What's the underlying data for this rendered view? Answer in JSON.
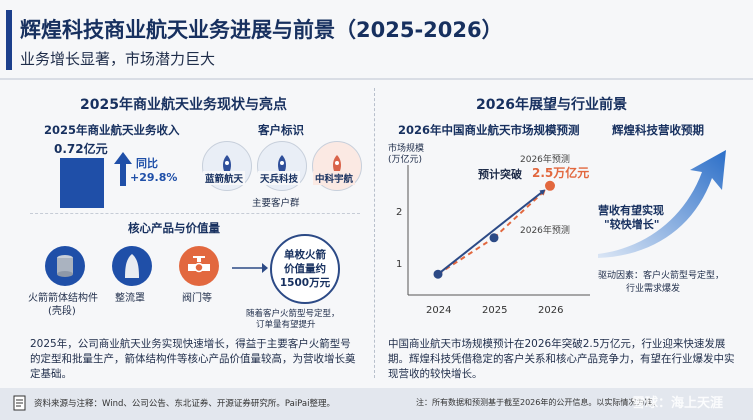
{
  "header": {
    "title": "辉煌科技商业航天业务进展与前景（2025-2026）",
    "subtitle": "业务增长显著，市场潜力巨大"
  },
  "left": {
    "section_title": "2025年商业航天业务现状与亮点",
    "revenue": {
      "title": "2025年商业航天业务收入",
      "value": "0.72亿元",
      "yoy_label": "同比",
      "yoy_value": "+29.8%"
    },
    "customers": {
      "title": "客户标识",
      "items": [
        {
          "name": "蓝箭航天",
          "color": "#2f4f9a"
        },
        {
          "name": "天兵科技",
          "color": "#2f4f9a"
        },
        {
          "name": "中科宇航",
          "color": "#d9634a"
        }
      ],
      "caption": "主要客户群"
    },
    "products": {
      "title": "核心产品与价值量",
      "items": [
        {
          "name": "火箭箭体结构件",
          "note": "(壳段)",
          "icon": "cylinder-icon"
        },
        {
          "name": "整流罩",
          "note": "",
          "icon": "fairing-icon"
        },
        {
          "name": "阀门等",
          "note": "",
          "icon": "valve-icon"
        }
      ],
      "value_line1": "单枚火箭",
      "value_line2": "价值量约",
      "value_line3": "1500万元",
      "value_note1": "随着客户火箭型号定型，",
      "value_note2": "订单量有望提升"
    },
    "paragraph": "2025年，公司商业航天业务实现快速增长，得益于主要客户火箭型号的定型和批量生产，箭体结构件等核心产品价值量较高，为营收增长奠定基础。"
  },
  "right": {
    "section_title": "2026年展望与行业前景",
    "market_title": "2026年中国商业航天市场规模预测",
    "growth_title": "辉煌科技营收预期",
    "chart_ylabel_line1": "市场规模",
    "chart_ylabel_line2": "(万亿元)",
    "annot_top": "2026年预测",
    "annot_break": "预计突破",
    "annot_value": "2.5万亿元",
    "annot_bottom": "2026年预测",
    "growth_text_line1": "营收有望实现",
    "growth_text_line2": "\"较快增长\"",
    "drivers_line1": "驱动因素：客户火箭型号定型，",
    "drivers_line2": "行业需求爆发",
    "paragraph": "中国商业航天市场规模预计在2026年突破2.5万亿元，行业迎来快速发展期。辉煌科技凭借稳定的客户关系和核心产品竞争力，有望在行业爆发中实现营收的较快增长。"
  },
  "chart_data": {
    "type": "line",
    "x": [
      "2024",
      "2025",
      "2026"
    ],
    "yticks": [
      1,
      2
    ],
    "ylim": [
      0.4,
      2.9
    ],
    "series": [
      {
        "values": [
          0.8,
          1.5,
          2.5
        ],
        "color": "#e2683f",
        "style": "dashed"
      },
      {
        "values": [
          0.8,
          null,
          2.5
        ],
        "color": "#2c4a86",
        "style": "solid"
      }
    ]
  },
  "footer": {
    "source": "资料来源与注释：Wind、公司公告、东北证券、开源证券研究所。PaiPai整理。",
    "note": "注：所有数据和预测基于截至2026年的公开信息。以实际情况为准。",
    "watermark": "雪球：海上天涯"
  },
  "colors": {
    "primary": "#1c3f8c",
    "accent_orange": "#e2683f"
  }
}
